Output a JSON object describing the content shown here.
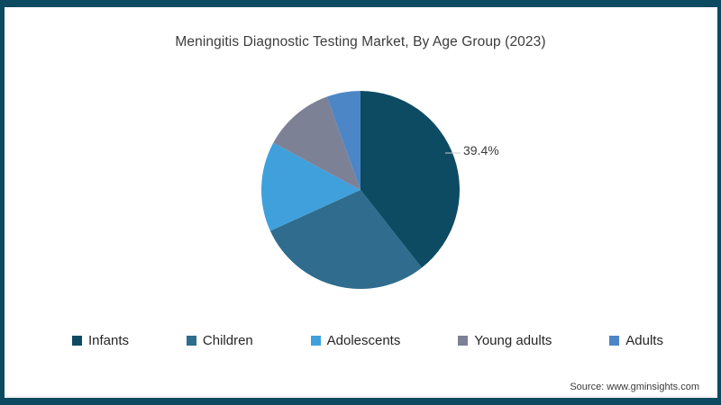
{
  "page": {
    "background": "#ffffff",
    "border_color": "#0c4a62",
    "source_note": "Source: www.gminsights.com"
  },
  "chart_data": {
    "type": "pie",
    "title": "Meningitis Diagnostic Testing Market, By Age Group (2023)",
    "categories": [
      "Infants",
      "Children",
      "Adolescents",
      "Young adults",
      "Adults"
    ],
    "values": [
      39.4,
      28.8,
      14.7,
      11.6,
      5.5
    ],
    "unit": "%",
    "colors": [
      "#0d4b63",
      "#2f6c8d",
      "#3fa0dc",
      "#7c8196",
      "#4c86c6"
    ],
    "start_angle_deg": 0,
    "direction": "clockwise",
    "legend_position": "bottom",
    "data_label": "39.4%",
    "data_label_slice_index": 0,
    "leader_line_color": "#c9c9c9"
  },
  "legend": {
    "items": [
      {
        "label": "Infants",
        "color": "#0d4b63"
      },
      {
        "label": "Children",
        "color": "#2f6c8d"
      },
      {
        "label": "Adolescents",
        "color": "#3fa0dc"
      },
      {
        "label": "Young adults",
        "color": "#7c8196"
      },
      {
        "label": "Adults",
        "color": "#4c86c6"
      }
    ]
  }
}
